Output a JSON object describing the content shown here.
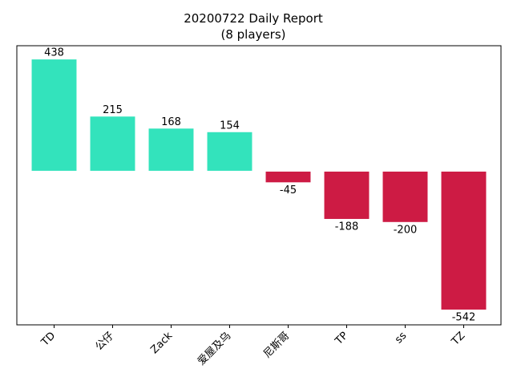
{
  "chart_data": {
    "type": "bar",
    "title": "20200722 Daily Report",
    "subtitle": "(8 players)",
    "xlabel": "",
    "ylabel": "",
    "categories": [
      "TD",
      "公仔",
      "Zack",
      "爱屋及乌",
      "尼斯哥",
      "TP",
      "ss",
      "TZ"
    ],
    "values": [
      438,
      215,
      168,
      154,
      -45,
      -188,
      -200,
      -542
    ],
    "value_labels": [
      "438",
      "215",
      "168",
      "154",
      "-45",
      "-188",
      "-200",
      "-542"
    ],
    "ylim": [
      -600,
      490
    ],
    "grid": false,
    "legend": "none",
    "colors": {
      "positive": "#33e3bc",
      "negative": "#cd1b44",
      "frame": "#000000"
    }
  }
}
